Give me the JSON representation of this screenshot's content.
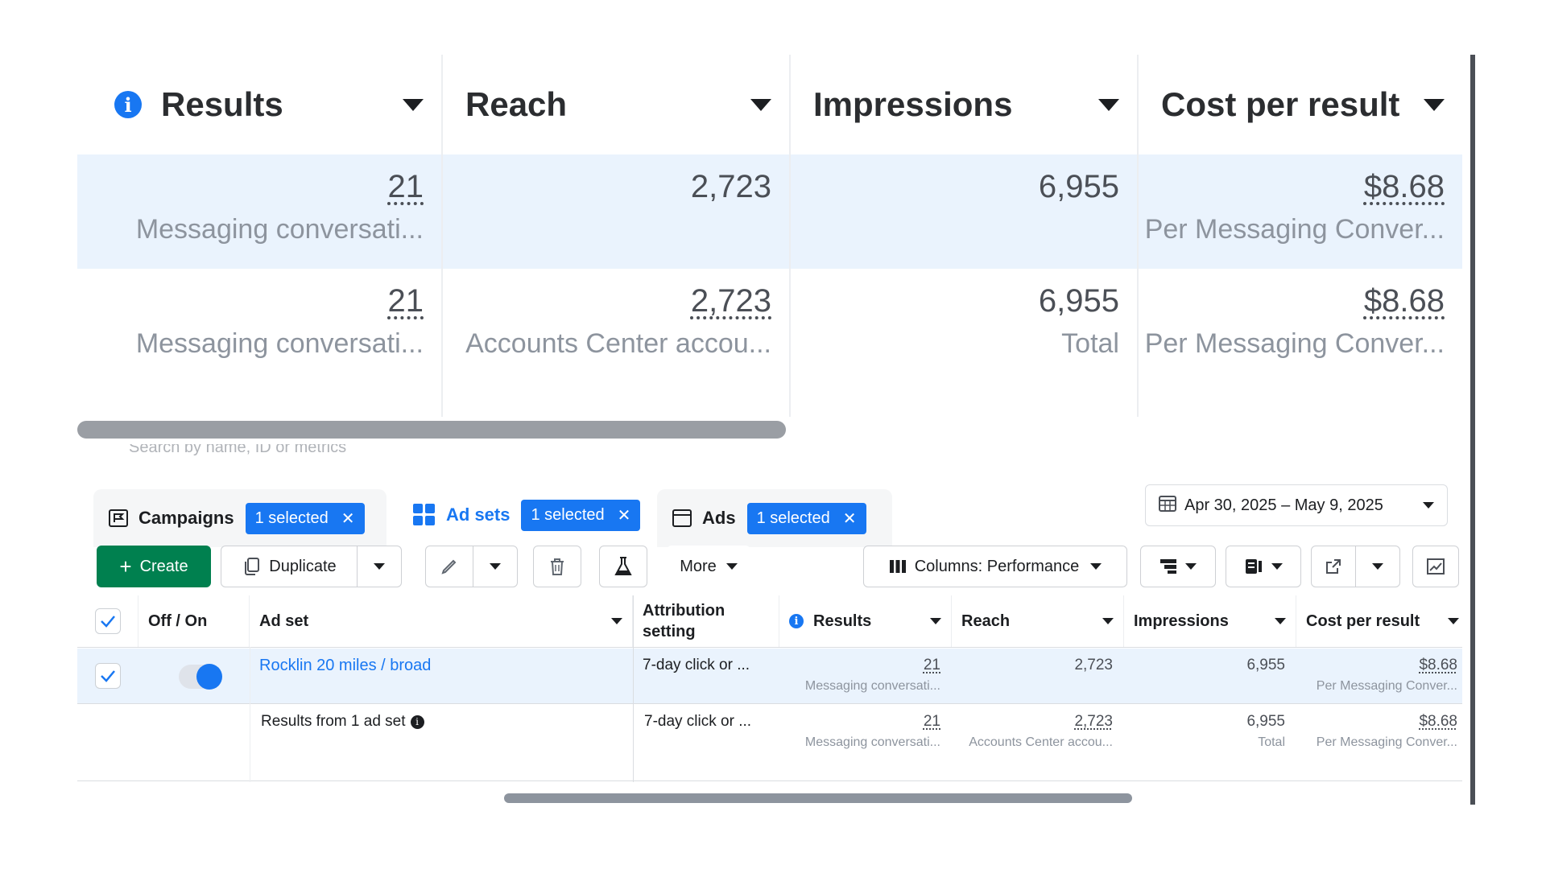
{
  "zoom_header": {
    "results": "Results",
    "reach": "Reach",
    "impressions": "Impressions",
    "cost_per_result": "Cost per result"
  },
  "zoom_row1": {
    "results_value": "21",
    "results_sub": "Messaging conversati...",
    "reach_value": "2,723",
    "impressions_value": "6,955",
    "cost_value": "$8.68",
    "cost_sub": "Per Messaging Conver..."
  },
  "zoom_row2": {
    "results_value": "21",
    "results_sub": "Messaging conversati...",
    "reach_value": "2,723",
    "reach_sub": "Accounts Center accou...",
    "impressions_value": "6,955",
    "impressions_sub": "Total",
    "cost_value": "$8.68",
    "cost_sub": "Per Messaging Conver..."
  },
  "search": {
    "placeholder": "Search by name, ID or metrics"
  },
  "tabs": {
    "campaigns": {
      "label": "Campaigns",
      "pill": "1 selected"
    },
    "adsets": {
      "label": "Ad sets",
      "pill": "1 selected"
    },
    "ads": {
      "label": "Ads",
      "pill": "1 selected"
    }
  },
  "date_range": "Apr 30, 2025 – May 9, 2025",
  "toolbar": {
    "create": "Create",
    "duplicate": "Duplicate",
    "more": "More",
    "columns": "Columns: Performance"
  },
  "table": {
    "headers": {
      "offon": "Off / On",
      "adset": "Ad set",
      "attribution": "Attribution setting",
      "results": "Results",
      "reach": "Reach",
      "impressions": "Impressions",
      "cost": "Cost per result"
    },
    "row": {
      "name": "Rocklin 20 miles / broad",
      "attribution": "7-day click or ...",
      "results": "21",
      "results_sub": "Messaging conversati...",
      "reach": "2,723",
      "impressions": "6,955",
      "cost": "$8.68",
      "cost_sub": "Per Messaging Conver..."
    },
    "summary": {
      "label": "Results from 1 ad set",
      "attribution": "7-day click or ...",
      "results": "21",
      "results_sub": "Messaging conversati...",
      "reach": "2,723",
      "reach_sub": "Accounts Center accou...",
      "impressions": "6,955",
      "impressions_sub": "Total",
      "cost": "$8.68",
      "cost_sub": "Per Messaging Conver..."
    }
  },
  "colors": {
    "accent": "#1877f2",
    "create": "#00804f",
    "selected_row": "#eaf3fd"
  }
}
